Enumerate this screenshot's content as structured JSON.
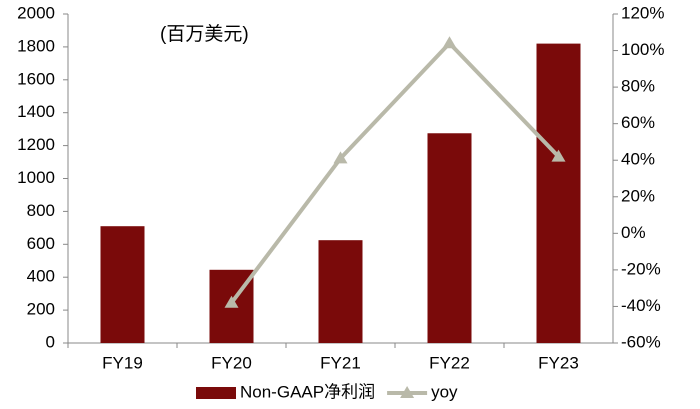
{
  "chart_data": {
    "type": "bar",
    "annotation": "(百万美元)",
    "categories": [
      "FY19",
      "FY20",
      "FY21",
      "FY22",
      "FY23"
    ],
    "series": [
      {
        "name": "Non-GAAP净利润",
        "type": "bar",
        "color": "#7a0a0a",
        "values": [
          710,
          445,
          625,
          1275,
          1820
        ]
      },
      {
        "name": "yoy",
        "type": "line",
        "axis": "y2",
        "color": "#b9b9a9",
        "values": [
          null,
          -38,
          41,
          104,
          42
        ]
      }
    ],
    "ylim": [
      0,
      2000
    ],
    "yticks": [
      0,
      200,
      400,
      600,
      800,
      1000,
      1200,
      1400,
      1600,
      1800,
      2000
    ],
    "y2lim": [
      -60,
      120
    ],
    "y2ticks": [
      {
        "value": -60,
        "label": "-60%"
      },
      {
        "value": -40,
        "label": "-40%"
      },
      {
        "value": -20,
        "label": "-20%"
      },
      {
        "value": 0,
        "label": "0%"
      },
      {
        "value": 20,
        "label": "20%"
      },
      {
        "value": 40,
        "label": "40%"
      },
      {
        "value": 60,
        "label": "60%"
      },
      {
        "value": 80,
        "label": "80%"
      },
      {
        "value": 100,
        "label": "100%"
      },
      {
        "value": 120,
        "label": "120%"
      }
    ],
    "grid": false,
    "legend": "bottom"
  }
}
